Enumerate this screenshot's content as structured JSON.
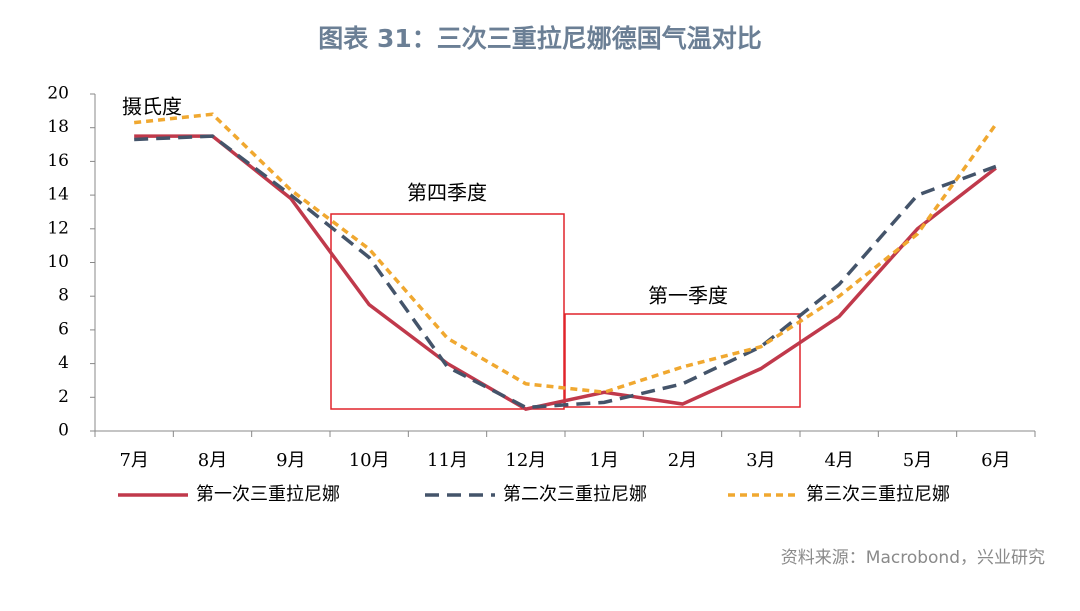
{
  "chart_data": {
    "type": "line",
    "title": "图表 31：三次三重拉尼娜德国气温对比",
    "y_label": "摄氏度",
    "annotations": [
      "第四季度",
      "第一季度"
    ],
    "source": "资料来源：Macrobond，兴业研究",
    "categories": [
      "7月",
      "8月",
      "9月",
      "10月",
      "11月",
      "12月",
      "1月",
      "2月",
      "3月",
      "4月",
      "5月",
      "6月"
    ],
    "series": [
      {
        "name": "第一次三重拉尼娜",
        "color": "#c0394b",
        "dash": "solid",
        "values": [
          17.5,
          17.5,
          13.8,
          7.5,
          4.0,
          1.3,
          2.3,
          1.6,
          3.7,
          6.8,
          12.0,
          15.6
        ]
      },
      {
        "name": "第二次三重拉尼娜",
        "color": "#44546a",
        "dash": "dashed",
        "values": [
          17.3,
          17.5,
          14.0,
          10.3,
          3.8,
          1.4,
          1.7,
          2.8,
          5.0,
          8.7,
          14.0,
          15.7
        ]
      },
      {
        "name": "第三次三重拉尼娜",
        "color": "#f0a830",
        "dash": "dotted",
        "values": [
          18.3,
          18.8,
          14.3,
          10.8,
          5.5,
          2.8,
          2.3,
          3.8,
          5.0,
          8.0,
          11.7,
          18.2
        ]
      }
    ],
    "ylim": [
      0,
      20
    ],
    "yticks": [
      0,
      2,
      4,
      6,
      8,
      10,
      12,
      14,
      16,
      18,
      20
    ]
  }
}
